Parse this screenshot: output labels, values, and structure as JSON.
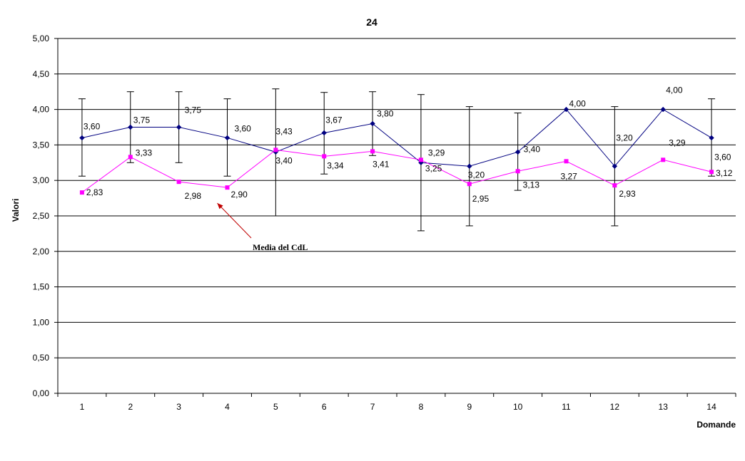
{
  "chart_data": {
    "type": "line",
    "title": "24",
    "xlabel": "Domande",
    "ylabel": "Valori",
    "categories": [
      "1",
      "2",
      "3",
      "4",
      "5",
      "6",
      "7",
      "8",
      "9",
      "10",
      "11",
      "12",
      "13",
      "14"
    ],
    "ylim": [
      0,
      5
    ],
    "yticks": [
      "0,00",
      "0,50",
      "1,00",
      "1,50",
      "2,00",
      "2,50",
      "3,00",
      "3,50",
      "4,00",
      "4,50",
      "5,00"
    ],
    "grid": true,
    "series": [
      {
        "color": "#000080",
        "marker": "diamond",
        "values": [
          3.6,
          3.75,
          3.75,
          3.6,
          3.4,
          3.67,
          3.8,
          3.25,
          3.2,
          3.4,
          4.0,
          3.2,
          4.0,
          3.6
        ],
        "labels": [
          "3,60",
          "3,75",
          "3,75",
          "3,60",
          "3,40",
          "3,67",
          "3,80",
          "3,25",
          "3,20",
          "3,40",
          "4,00",
          "3,20",
          "4,00",
          "3,60"
        ],
        "error_low": [
          3.06,
          3.25,
          3.25,
          3.06,
          2.5,
          3.09,
          3.35,
          2.29,
          2.36,
          2.86,
          4.0,
          2.36,
          4.0,
          3.06
        ],
        "error_high": [
          4.15,
          4.25,
          4.25,
          4.15,
          4.29,
          4.24,
          4.25,
          4.21,
          4.04,
          3.95,
          4.0,
          4.04,
          4.0,
          4.15
        ]
      },
      {
        "name": "Media del CdL",
        "color": "#ff00ff",
        "marker": "square",
        "values": [
          2.83,
          3.33,
          2.98,
          2.9,
          3.43,
          3.34,
          3.41,
          3.29,
          2.95,
          3.13,
          3.27,
          2.93,
          3.29,
          3.12
        ],
        "labels": [
          "2,83",
          "3,33",
          "2,98",
          "2,90",
          "3,43",
          "3,34",
          "3,41",
          "3,29",
          "2,95",
          "3,13",
          "3,27",
          "2,93",
          "3,29",
          "3,12"
        ]
      }
    ],
    "annotation": {
      "text": "Media del CdL",
      "series_index": 1,
      "point_index": 3,
      "arrow_color": "#c00000"
    }
  }
}
